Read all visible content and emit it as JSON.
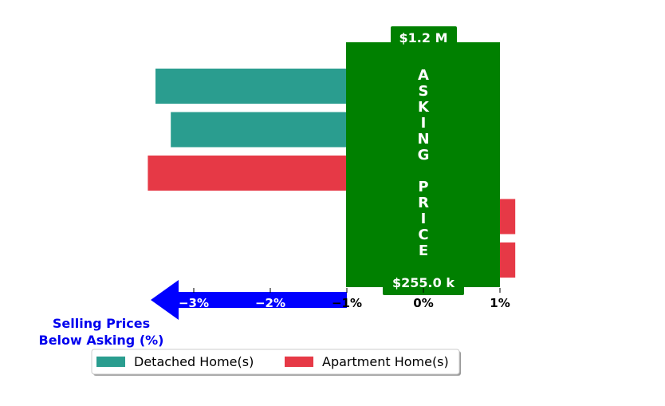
{
  "chart_data": {
    "type": "bar",
    "orientation": "horizontal",
    "xlabel": "Selling Prices\nBelow Asking (%)",
    "ylabel": "",
    "title": "",
    "xlim": [
      -3.5,
      1.3
    ],
    "x_ticks": [
      {
        "value": -3,
        "label": "−3%"
      },
      {
        "value": -2,
        "label": "−2%"
      },
      {
        "value": -1,
        "label": "−1%"
      },
      {
        "value": 0,
        "label": "0%"
      },
      {
        "value": 1,
        "label": "1%"
      }
    ],
    "bars": [
      {
        "series": "Detached Home(s)",
        "value": -3.5
      },
      {
        "series": "Detached Home(s)",
        "value": -3.3
      },
      {
        "series": "Apartment Home(s)",
        "value": -3.6
      },
      {
        "series": "Apartment Home(s)",
        "value": 1.2
      },
      {
        "series": "Apartment Home(s)",
        "value": 1.2
      }
    ],
    "series": [
      {
        "name": "Detached Home(s)",
        "color": "#2a9d8f"
      },
      {
        "name": "Apartment Home(s)",
        "color": "#e63946"
      }
    ],
    "asking_price_band": {
      "x_range": [
        -1,
        1
      ],
      "color": "#008000",
      "letters": [
        "A",
        "S",
        "K",
        "I",
        "N",
        "G",
        "",
        "P",
        "R",
        "I",
        "C",
        "E"
      ],
      "max_label": "$1.2 M",
      "min_label": "$255.0 k"
    },
    "arrow": {
      "color": "#0000ff",
      "direction": "left"
    },
    "grid": false,
    "legend": {
      "placement": "bottom-left",
      "columns": 2
    }
  }
}
